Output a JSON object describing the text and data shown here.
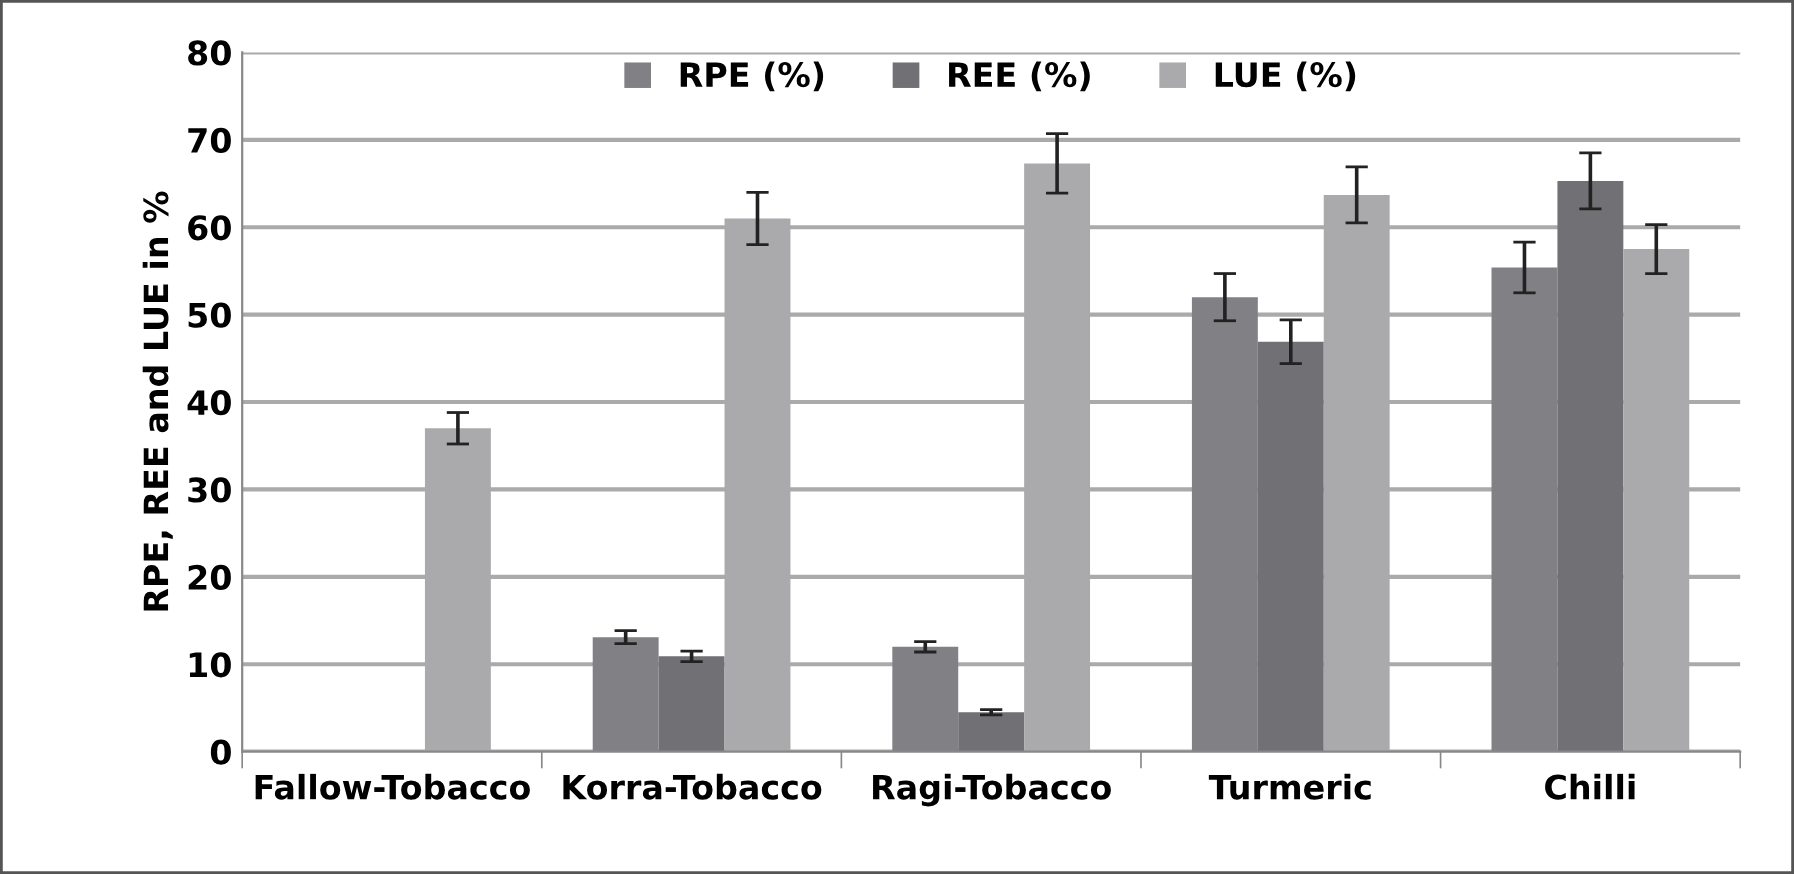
{
  "chart_data": {
    "type": "bar",
    "ylabel": "RPE, REE and LUE in %",
    "categories": [
      "Fallow-Tobacco",
      "Korra-Tobacco",
      "Ragi-Tobacco",
      "Turmeric",
      "Chilli"
    ],
    "series": [
      {
        "name": "RPE (%)",
        "color": "#818185",
        "values": [
          null,
          13.1,
          12.0,
          52.0,
          55.4
        ],
        "errors": [
          null,
          0.75,
          0.6,
          2.7,
          2.9
        ]
      },
      {
        "name": "REE (%)",
        "color": "#717175",
        "values": [
          null,
          10.9,
          4.5,
          46.9,
          65.3
        ],
        "errors": [
          null,
          0.6,
          0.3,
          2.5,
          3.2
        ]
      },
      {
        "name": "LUE (%)",
        "color": "#aaaaac",
        "values": [
          37.0,
          61.0,
          67.3,
          63.7,
          57.5
        ],
        "errors": [
          1.8,
          3.0,
          3.4,
          3.2,
          2.8
        ]
      }
    ],
    "ylim": [
      0,
      80
    ],
    "yticks": [
      0,
      10,
      20,
      30,
      40,
      50,
      60,
      70,
      80
    ],
    "grid": "y",
    "legend": "top"
  }
}
